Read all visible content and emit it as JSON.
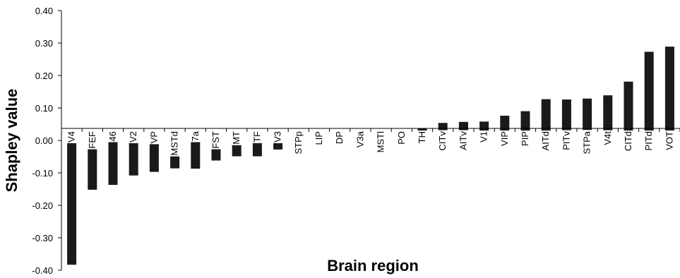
{
  "chart_data": {
    "type": "bar",
    "title": "",
    "xlabel": "Brain region",
    "ylabel": "Shapley value",
    "ylim": [
      -0.4,
      0.4
    ],
    "yticks": [
      "0.40",
      "0.30",
      "0.20",
      "0.10",
      "0.00",
      "-0.10",
      "-0.20",
      "-0.30",
      "-0.40"
    ],
    "grid": false,
    "legend": "none",
    "bar_color": "#1a1a1a",
    "categories": [
      "V4",
      "FEF",
      "46",
      "V2",
      "VP",
      "MSTd",
      "7a",
      "FST",
      "MT",
      "TF",
      "V3",
      "STPp",
      "LIP",
      "DP",
      "V3a",
      "MSTl",
      "PO",
      "TH",
      "CITv",
      "AITv",
      "V1",
      "VIP",
      "PIP",
      "AITd",
      "PITv",
      "STPa",
      "V4t",
      "CITd",
      "PITd",
      "VOT"
    ],
    "values": [
      -0.383,
      -0.152,
      -0.137,
      -0.108,
      -0.097,
      -0.086,
      -0.087,
      -0.062,
      -0.049,
      -0.049,
      -0.028,
      -0.023,
      -0.014,
      -0.004,
      0.004,
      0.011,
      0.022,
      0.037,
      0.054,
      0.057,
      0.058,
      0.076,
      0.09,
      0.127,
      0.126,
      0.129,
      0.139,
      0.181,
      0.273,
      0.289
    ]
  }
}
